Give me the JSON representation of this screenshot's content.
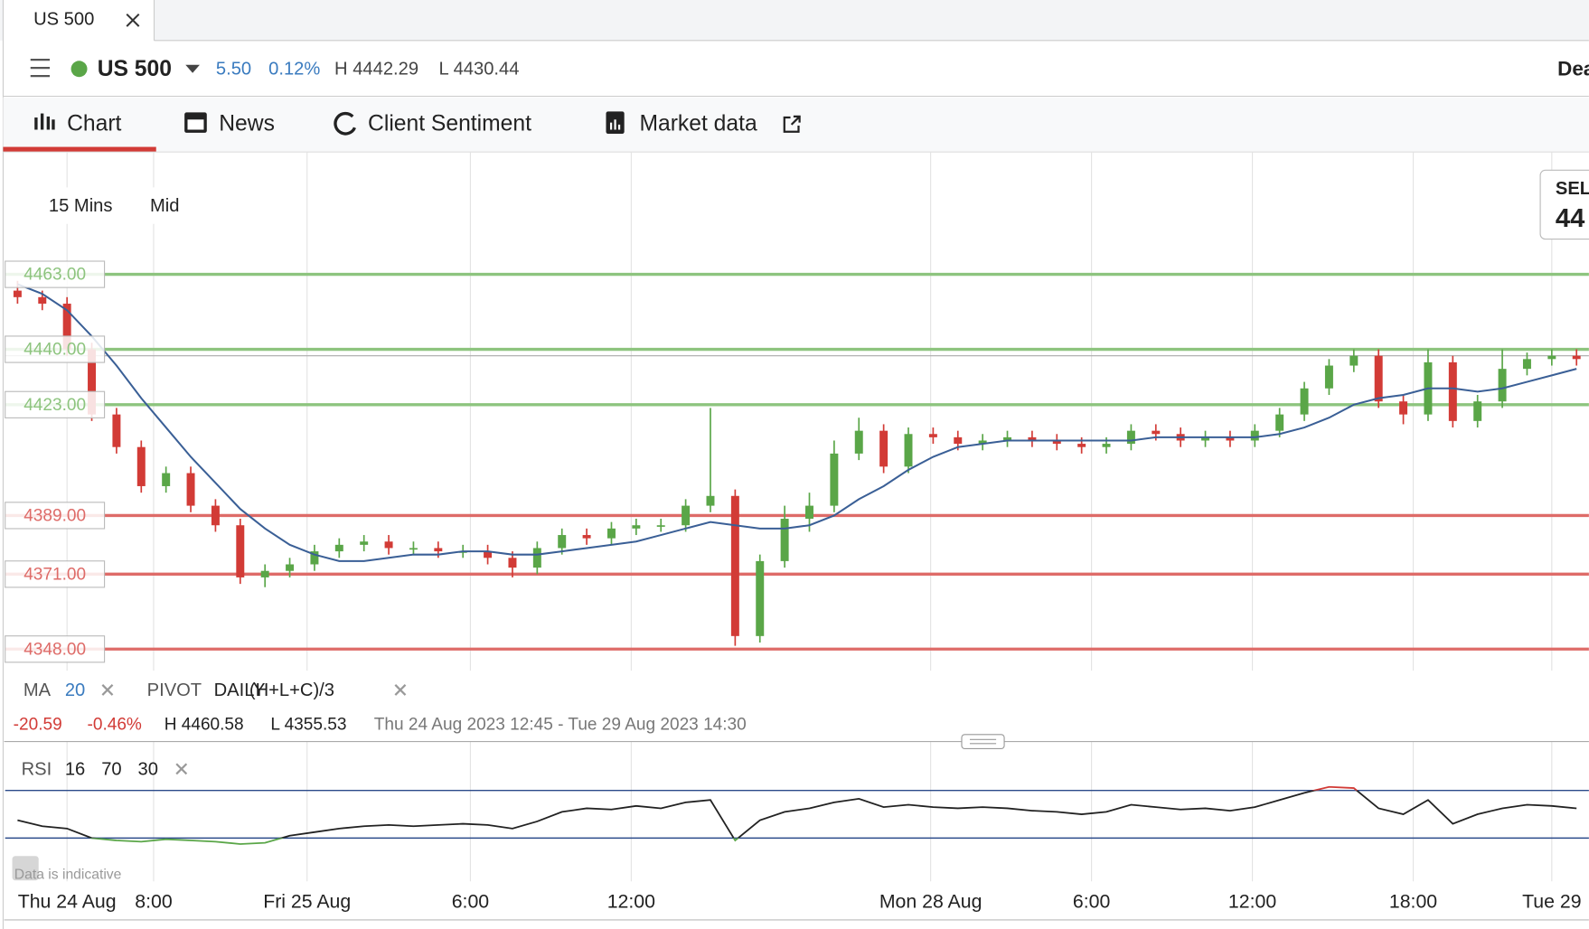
{
  "tab": {
    "title": "US 500"
  },
  "header": {
    "instrument": "US 500",
    "change": "5.50",
    "change_pct": "0.12%",
    "high": "H 4442.29",
    "low": "L 4430.44",
    "deal": "Dea"
  },
  "nav": [
    "Chart",
    "News",
    "Client Sentiment",
    "Market data"
  ],
  "controls": {
    "interval": "15 Mins",
    "price": "Mid"
  },
  "sell": {
    "label": "SEL",
    "price": "44"
  },
  "pivot": {
    "label": "PIVOT",
    "period": "DAILY",
    "formula": "(H+L+C)/3"
  },
  "stats": {
    "change": "-20.59",
    "change_pct": "-0.46%",
    "high": "H 4460.58",
    "low": "L 4355.53",
    "range": "Thu 24 Aug 2023 12:45 - Tue 29 Aug 2023 14:30"
  },
  "note": "Data is indicative",
  "chart_data": [
    {
      "type": "candlestick",
      "xlim": [
        -0.5,
        63.5
      ],
      "xticks": [
        {
          "value": 2.0,
          "label": "Thu 24 Aug"
        },
        {
          "value": 5.5,
          "label": "8:00"
        },
        {
          "value": 11.7,
          "label": "Fri 25 Aug"
        },
        {
          "value": 18.3,
          "label": "6:00"
        },
        {
          "value": 24.8,
          "label": "12:00"
        },
        {
          "value": 36.9,
          "label": "Mon 28 Aug"
        },
        {
          "value": 43.4,
          "label": "6:00"
        },
        {
          "value": 49.9,
          "label": "12:00"
        },
        {
          "value": 56.4,
          "label": "18:00"
        },
        {
          "value": 62.0,
          "label": "Tue 29"
        }
      ],
      "ylim": [
        4342,
        4499
      ],
      "levels": [
        {
          "value": 4463,
          "label": "4463.00",
          "color": "#8dc47e"
        },
        {
          "value": 4440,
          "label": "4440.00",
          "color": "#8dc47e"
        },
        {
          "value": 4423,
          "label": "4423.00",
          "color": "#8dc47e"
        },
        {
          "value": 4389,
          "label": "4389.00",
          "color": "#de6b68"
        },
        {
          "value": 4371,
          "label": "4371.00",
          "color": "#de6b68"
        },
        {
          "value": 4348,
          "label": "4348.00",
          "color": "#de6b68"
        }
      ],
      "current": 4438,
      "up_color": "#5aa648",
      "down_color": "#d23b36",
      "series": [
        {
          "open": [
            4458,
            4456,
            4454,
            4440,
            4420,
            4410,
            4398,
            4402,
            4392,
            4386,
            4370,
            4372,
            4374,
            4378,
            4380,
            4381,
            4379,
            4379,
            4378,
            4378,
            4376,
            4373,
            4379,
            4383,
            4382,
            4385,
            4386,
            4386,
            4392,
            4395,
            4352,
            4375,
            4388,
            4392,
            4408,
            4415,
            4404,
            4414,
            4413,
            4411,
            4412,
            4413,
            4412,
            4411,
            4410,
            4411,
            4415,
            4414,
            4412,
            4413,
            4412,
            4415,
            4420,
            4428,
            4435,
            4438,
            4424,
            4420,
            4436,
            4418,
            4424,
            4434,
            4437,
            4438
          ],
          "high": [
            4461,
            4458,
            4456,
            4442,
            4422,
            4412,
            4404,
            4404,
            4394,
            4388,
            4374,
            4376,
            4380,
            4382,
            4383,
            4383,
            4381,
            4381,
            4380,
            4380,
            4378,
            4381,
            4385,
            4385,
            4387,
            4388,
            4388,
            4394,
            4422,
            4397,
            4377,
            4392,
            4396,
            4412,
            4419,
            4417,
            4416,
            4416,
            4415,
            4414,
            4415,
            4415,
            4414,
            4413,
            4413,
            4417,
            4417,
            4416,
            4415,
            4415,
            4417,
            4422,
            4430,
            4437,
            4440,
            4440,
            4426,
            4440,
            4438,
            4426,
            4440,
            4439,
            4440,
            4440
          ],
          "low": [
            4454,
            4452,
            4438,
            4418,
            4408,
            4396,
            4396,
            4390,
            4384,
            4368,
            4367,
            4370,
            4372,
            4376,
            4378,
            4377,
            4377,
            4376,
            4376,
            4374,
            4370,
            4371,
            4377,
            4380,
            4380,
            4383,
            4384,
            4384,
            4390,
            4349,
            4350,
            4373,
            4384,
            4390,
            4406,
            4402,
            4402,
            4411,
            4409,
            4409,
            4410,
            4410,
            4409,
            4408,
            4408,
            4409,
            4412,
            4410,
            4410,
            4410,
            4410,
            4413,
            4418,
            4426,
            4433,
            4422,
            4417,
            4418,
            4416,
            4416,
            4422,
            4432,
            4435,
            4435
          ],
          "close": [
            4456,
            4454,
            4440,
            4420,
            4410,
            4398,
            4402,
            4392,
            4386,
            4370,
            4372,
            4374,
            4378,
            4380,
            4381,
            4379,
            4379,
            4378,
            4378,
            4376,
            4373,
            4379,
            4383,
            4382,
            4385,
            4386,
            4386,
            4392,
            4395,
            4352,
            4375,
            4388,
            4392,
            4408,
            4415,
            4404,
            4414,
            4413,
            4411,
            4412,
            4413,
            4412,
            4411,
            4410,
            4411,
            4415,
            4414,
            4412,
            4413,
            4412,
            4415,
            4420,
            4428,
            4435,
            4438,
            4424,
            4420,
            4436,
            4418,
            4424,
            4434,
            4437,
            4438,
            4437
          ]
        },
        {
          "name": "MA",
          "period": 20,
          "color": "#3a5f96",
          "values": [
            4460,
            4457,
            4452,
            4444,
            4435,
            4425,
            4416,
            4407,
            4399,
            4391,
            4385,
            4380,
            4377,
            4375,
            4375,
            4376,
            4377,
            4377,
            4378,
            4378,
            4377,
            4377,
            4378,
            4379,
            4380,
            4381,
            4383,
            4385,
            4387,
            4386,
            4385,
            4385,
            4386,
            4389,
            4394,
            4398,
            4403,
            4407,
            4410,
            4411,
            4412,
            4412,
            4412,
            4412,
            4412,
            4412,
            4413,
            4413,
            4413,
            4413,
            4413,
            4414,
            4416,
            4419,
            4423,
            4425,
            4426,
            4428,
            4428,
            4427,
            4428,
            4430,
            4432,
            4434
          ]
        }
      ]
    },
    {
      "type": "line",
      "ylim": [
        0,
        100
      ],
      "levels": [
        70,
        30
      ],
      "level_color": "#2b4a8a",
      "upper_color": "#d23b36",
      "lower_color": "#5aa648",
      "series": [
        {
          "name": "RSI",
          "period": 16,
          "color": "#222222",
          "values": [
            45,
            40,
            38,
            30,
            28,
            27,
            29,
            28,
            27,
            25,
            26,
            32,
            35,
            38,
            40,
            41,
            40,
            41,
            42,
            41,
            38,
            44,
            52,
            55,
            54,
            57,
            55,
            60,
            62,
            28,
            45,
            52,
            55,
            60,
            63,
            56,
            58,
            56,
            55,
            56,
            55,
            53,
            52,
            50,
            52,
            58,
            56,
            54,
            55,
            53,
            56,
            62,
            68,
            73,
            72,
            55,
            50,
            62,
            42,
            50,
            55,
            58,
            57,
            55
          ]
        }
      ]
    }
  ]
}
